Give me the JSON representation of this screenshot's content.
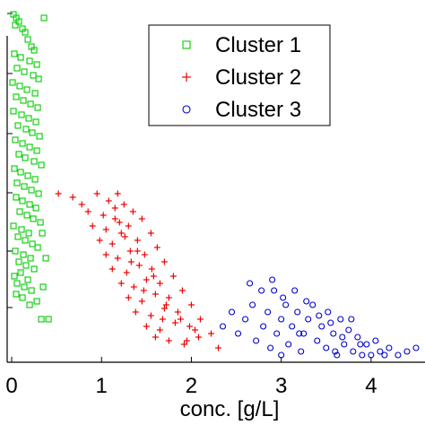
{
  "chart_data": {
    "type": "scatter",
    "xlabel": "conc. [g/L]",
    "ylabel": "",
    "xlim": [
      -0.05,
      4.6
    ],
    "ylim": [
      0,
      1.0
    ],
    "x_ticks": [
      "0",
      "1",
      "2",
      "3",
      "4"
    ],
    "grid": false,
    "legend_position": "top-right",
    "series": [
      {
        "name": "Cluster 1",
        "marker": "square",
        "color": "#00cc00",
        "points": [
          [
            0.02,
            0.97
          ],
          [
            0.05,
            0.96
          ],
          [
            0.08,
            0.95
          ],
          [
            0.04,
            0.94
          ],
          [
            0.12,
            0.93
          ],
          [
            0.15,
            0.92
          ],
          [
            0.36,
            0.96
          ],
          [
            0.18,
            0.9
          ],
          [
            0.22,
            0.88
          ],
          [
            0.25,
            0.87
          ],
          [
            0.03,
            0.86
          ],
          [
            0.1,
            0.85
          ],
          [
            0.2,
            0.84
          ],
          [
            0.28,
            0.83
          ],
          [
            0.06,
            0.82
          ],
          [
            0.14,
            0.81
          ],
          [
            0.24,
            0.8
          ],
          [
            0.3,
            0.79
          ],
          [
            0.01,
            0.78
          ],
          [
            0.09,
            0.77
          ],
          [
            0.17,
            0.76
          ],
          [
            0.26,
            0.75
          ],
          [
            0.05,
            0.74
          ],
          [
            0.13,
            0.73
          ],
          [
            0.21,
            0.72
          ],
          [
            0.29,
            0.71
          ],
          [
            0.02,
            0.7
          ],
          [
            0.11,
            0.69
          ],
          [
            0.19,
            0.68
          ],
          [
            0.27,
            0.67
          ],
          [
            0.07,
            0.66
          ],
          [
            0.16,
            0.65
          ],
          [
            0.23,
            0.64
          ],
          [
            0.31,
            0.63
          ],
          [
            0.04,
            0.62
          ],
          [
            0.12,
            0.61
          ],
          [
            0.2,
            0.6
          ],
          [
            0.28,
            0.59
          ],
          [
            0.08,
            0.58
          ],
          [
            0.15,
            0.57
          ],
          [
            0.25,
            0.56
          ],
          [
            0.33,
            0.55
          ],
          [
            0.03,
            0.54
          ],
          [
            0.1,
            0.53
          ],
          [
            0.18,
            0.52
          ],
          [
            0.26,
            0.51
          ],
          [
            0.06,
            0.5
          ],
          [
            0.14,
            0.49
          ],
          [
            0.22,
            0.48
          ],
          [
            0.3,
            0.47
          ],
          [
            0.05,
            0.46
          ],
          [
            0.12,
            0.45
          ],
          [
            0.2,
            0.44
          ],
          [
            0.27,
            0.43
          ],
          [
            0.09,
            0.42
          ],
          [
            0.17,
            0.41
          ],
          [
            0.24,
            0.4
          ],
          [
            0.32,
            0.39
          ],
          [
            0.02,
            0.38
          ],
          [
            0.11,
            0.37
          ],
          [
            0.19,
            0.36
          ],
          [
            0.34,
            0.36
          ],
          [
            0.07,
            0.35
          ],
          [
            0.15,
            0.34
          ],
          [
            0.23,
            0.33
          ],
          [
            0.29,
            0.32
          ],
          [
            0.04,
            0.31
          ],
          [
            0.13,
            0.3
          ],
          [
            0.21,
            0.29
          ],
          [
            0.38,
            0.29
          ],
          [
            0.08,
            0.28
          ],
          [
            0.16,
            0.27
          ],
          [
            0.25,
            0.26
          ],
          [
            0.1,
            0.25
          ],
          [
            0.03,
            0.24
          ],
          [
            0.18,
            0.23
          ],
          [
            0.06,
            0.22
          ],
          [
            0.14,
            0.21
          ],
          [
            0.22,
            0.2
          ],
          [
            0.41,
            0.12
          ],
          [
            0.33,
            0.12
          ],
          [
            0.2,
            0.16
          ],
          [
            0.12,
            0.18
          ],
          [
            0.05,
            0.19
          ],
          [
            0.28,
            0.17
          ],
          [
            0.35,
            0.21
          ]
        ]
      },
      {
        "name": "Cluster 2",
        "marker": "plus",
        "color": "#ee0000",
        "points": [
          [
            0.52,
            0.47
          ],
          [
            0.68,
            0.46
          ],
          [
            0.78,
            0.44
          ],
          [
            0.95,
            0.47
          ],
          [
            1.08,
            0.45
          ],
          [
            1.18,
            0.47
          ],
          [
            0.85,
            0.42
          ],
          [
            1.02,
            0.41
          ],
          [
            1.15,
            0.43
          ],
          [
            1.25,
            0.44
          ],
          [
            1.35,
            0.42
          ],
          [
            0.9,
            0.38
          ],
          [
            1.05,
            0.37
          ],
          [
            1.2,
            0.39
          ],
          [
            1.3,
            0.38
          ],
          [
            1.45,
            0.4
          ],
          [
            0.98,
            0.34
          ],
          [
            1.12,
            0.33
          ],
          [
            1.26,
            0.35
          ],
          [
            1.4,
            0.34
          ],
          [
            1.55,
            0.36
          ],
          [
            1.05,
            0.3
          ],
          [
            1.18,
            0.29
          ],
          [
            1.32,
            0.31
          ],
          [
            1.48,
            0.3
          ],
          [
            1.62,
            0.32
          ],
          [
            1.12,
            0.26
          ],
          [
            1.28,
            0.25
          ],
          [
            1.42,
            0.27
          ],
          [
            1.56,
            0.26
          ],
          [
            1.7,
            0.28
          ],
          [
            1.22,
            0.22
          ],
          [
            1.36,
            0.21
          ],
          [
            1.5,
            0.23
          ],
          [
            1.65,
            0.22
          ],
          [
            1.8,
            0.24
          ],
          [
            1.3,
            0.18
          ],
          [
            1.45,
            0.17
          ],
          [
            1.6,
            0.19
          ],
          [
            1.75,
            0.18
          ],
          [
            1.9,
            0.2
          ],
          [
            1.38,
            0.14
          ],
          [
            1.55,
            0.13
          ],
          [
            1.7,
            0.15
          ],
          [
            1.85,
            0.14
          ],
          [
            2.0,
            0.16
          ],
          [
            1.5,
            0.1
          ],
          [
            1.65,
            0.09
          ],
          [
            1.82,
            0.11
          ],
          [
            1.98,
            0.1
          ],
          [
            2.1,
            0.12
          ],
          [
            1.75,
            0.06
          ],
          [
            1.92,
            0.05
          ],
          [
            2.08,
            0.07
          ],
          [
            2.22,
            0.08
          ],
          [
            2.3,
            0.04
          ],
          [
            1.6,
            0.07
          ],
          [
            1.4,
            0.31
          ],
          [
            1.22,
            0.36
          ],
          [
            1.58,
            0.24
          ],
          [
            1.72,
            0.16
          ],
          [
            1.88,
            0.12
          ],
          [
            2.04,
            0.09
          ],
          [
            1.15,
            0.4
          ],
          [
            1.33,
            0.28
          ],
          [
            1.47,
            0.2
          ],
          [
            1.68,
            0.12
          ],
          [
            1.95,
            0.06
          ]
        ]
      },
      {
        "name": "Cluster 3",
        "marker": "circle",
        "color": "#0000cc",
        "points": [
          [
            2.35,
            0.1
          ],
          [
            2.45,
            0.14
          ],
          [
            2.52,
            0.08
          ],
          [
            2.6,
            0.12
          ],
          [
            2.68,
            0.16
          ],
          [
            2.72,
            0.06
          ],
          [
            2.8,
            0.1
          ],
          [
            2.85,
            0.14
          ],
          [
            2.88,
            0.04
          ],
          [
            2.92,
            0.2
          ],
          [
            2.95,
            0.08
          ],
          [
            3.0,
            0.12
          ],
          [
            3.05,
            0.16
          ],
          [
            3.08,
            0.05
          ],
          [
            3.12,
            0.1
          ],
          [
            3.18,
            0.14
          ],
          [
            3.22,
            0.03
          ],
          [
            3.25,
            0.08
          ],
          [
            3.3,
            0.12
          ],
          [
            3.35,
            0.16
          ],
          [
            3.4,
            0.06
          ],
          [
            3.45,
            0.1
          ],
          [
            3.5,
            0.04
          ],
          [
            3.52,
            0.14
          ],
          [
            3.58,
            0.08
          ],
          [
            3.62,
            0.02
          ],
          [
            3.66,
            0.12
          ],
          [
            3.7,
            0.05
          ],
          [
            3.75,
            0.09
          ],
          [
            3.8,
            0.03
          ],
          [
            3.85,
            0.07
          ],
          [
            3.9,
            0.02
          ],
          [
            3.95,
            0.05
          ],
          [
            4.0,
            0.02
          ],
          [
            4.05,
            0.06
          ],
          [
            4.1,
            0.03
          ],
          [
            4.2,
            0.04
          ],
          [
            4.3,
            0.02
          ],
          [
            4.4,
            0.03
          ],
          [
            4.5,
            0.04
          ],
          [
            2.65,
            0.22
          ],
          [
            2.78,
            0.2
          ],
          [
            2.9,
            0.23
          ],
          [
            3.02,
            0.18
          ],
          [
            3.15,
            0.2
          ],
          [
            3.28,
            0.17
          ],
          [
            3.42,
            0.13
          ],
          [
            3.55,
            0.11
          ],
          [
            3.68,
            0.07
          ],
          [
            3.78,
            0.12
          ],
          [
            3.88,
            0.05
          ],
          [
            4.15,
            0.02
          ],
          [
            3.2,
            0.08
          ],
          [
            3.0,
            0.02
          ],
          [
            3.6,
            0.03
          ]
        ]
      }
    ]
  }
}
